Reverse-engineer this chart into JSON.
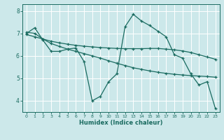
{
  "xlabel": "Humidex (Indice chaleur)",
  "bg_color": "#cce8ea",
  "grid_color": "#ffffff",
  "line_color": "#1a6b60",
  "xlim": [
    -0.5,
    23.5
  ],
  "ylim": [
    3.5,
    8.3
  ],
  "yticks": [
    4,
    5,
    6,
    7,
    8
  ],
  "xticks": [
    0,
    1,
    2,
    3,
    4,
    5,
    6,
    7,
    8,
    9,
    10,
    11,
    12,
    13,
    14,
    15,
    16,
    17,
    18,
    19,
    20,
    21,
    22,
    23
  ],
  "line1_x": [
    0,
    1,
    2,
    3,
    4,
    5,
    6,
    7,
    8,
    9,
    10,
    11,
    12,
    13,
    14,
    15,
    16,
    17,
    18,
    19,
    20,
    21,
    22,
    23
  ],
  "line1_y": [
    7.0,
    7.25,
    6.7,
    6.2,
    6.2,
    6.3,
    6.35,
    5.75,
    4.0,
    4.2,
    4.85,
    5.2,
    7.3,
    7.85,
    7.55,
    7.35,
    7.1,
    6.85,
    6.05,
    5.9,
    5.2,
    4.7,
    4.85,
    3.65
  ],
  "line2_x": [
    0,
    1,
    2,
    3,
    4,
    5,
    6,
    7,
    8,
    9,
    10,
    11,
    12,
    13,
    14,
    15,
    16,
    17,
    18,
    19,
    20,
    21,
    22,
    23
  ],
  "line2_y": [
    6.95,
    6.85,
    6.75,
    6.65,
    6.58,
    6.52,
    6.47,
    6.43,
    6.4,
    6.37,
    6.35,
    6.33,
    6.32,
    6.32,
    6.32,
    6.33,
    6.33,
    6.3,
    6.27,
    6.22,
    6.15,
    6.05,
    5.95,
    5.85
  ],
  "line3_x": [
    0,
    1,
    2,
    3,
    4,
    5,
    6,
    7,
    8,
    9,
    10,
    11,
    12,
    13,
    14,
    15,
    16,
    17,
    18,
    19,
    20,
    21,
    22,
    23
  ],
  "line3_y": [
    7.05,
    7.0,
    6.75,
    6.55,
    6.42,
    6.3,
    6.2,
    6.1,
    6.0,
    5.9,
    5.78,
    5.67,
    5.57,
    5.47,
    5.4,
    5.33,
    5.27,
    5.22,
    5.18,
    5.15,
    5.12,
    5.1,
    5.08,
    5.05
  ]
}
